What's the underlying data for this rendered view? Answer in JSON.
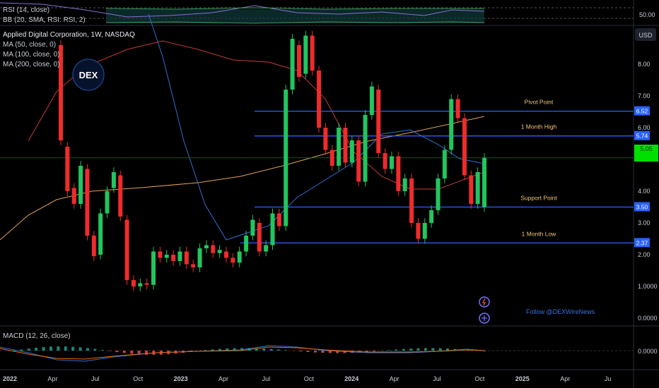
{
  "legends": {
    "rsi": "RSI (14, close)",
    "bb": "BB (20, SMA, RSI: RSI, 2)",
    "title": "Applied Digital Corporation, 1W, NASDAQ",
    "ma50": "MA (50, close, 0)",
    "ma100": "MA (100, close, 0)",
    "ma200": "MA (200, close, 0)",
    "macd": "MACD (12, 26, close)"
  },
  "currency": "USD",
  "logo_text": "DEX",
  "follow_text": "Follow @DEXWireNews",
  "rsi_axis_label": "50.00",
  "price_axis": {
    "ticks": [
      "8.00",
      "7.00",
      "6.00",
      "5.00",
      "4.00",
      "3.00",
      "2.00",
      "1.0000",
      "0.0000"
    ],
    "tick_values": [
      8,
      7,
      6,
      5,
      4,
      3,
      2,
      1,
      0
    ]
  },
  "macd_axis_label": "0.0000",
  "time_axis": [
    "2022",
    "Apr",
    "Jul",
    "Oct",
    "2023",
    "Apr",
    "Jul",
    "Oct",
    "2024",
    "Apr",
    "Jul",
    "Oct",
    "2025",
    "Apr",
    "Ju"
  ],
  "levels": [
    {
      "name": "Pivot Point",
      "value": 6.52,
      "label": "6.52"
    },
    {
      "name": "1 Month High",
      "value": 5.74,
      "label": "5.74"
    },
    {
      "name": "Support Point",
      "value": 3.5,
      "label": "3.50"
    },
    {
      "name": "1 Month Low",
      "value": 2.37,
      "label": "2.37"
    }
  ],
  "current_price_label": "5.05",
  "colors": {
    "up": "#22c55e",
    "down": "#ef2b2b",
    "level": "#2962ff",
    "level_label": "#f0c674",
    "ma50": "#2f6fd6",
    "ma100": "#c23b3b",
    "ma200": "#e0a35a",
    "current": "#00e000"
  },
  "chart_data": {
    "type": "candlestick",
    "title": "Applied Digital Corporation, 1W, NASDAQ",
    "ylim": [
      0,
      9
    ],
    "candles": [
      {
        "t": "2022-01",
        "o": 8.6,
        "c": 5.6
      },
      {
        "t": "2022-02",
        "o": 5.4,
        "c": 4.0
      },
      {
        "t": "2022-02b",
        "o": 4.1,
        "c": 3.6
      },
      {
        "t": "2022-03",
        "o": 3.6,
        "c": 4.8
      },
      {
        "t": "2022-03b",
        "o": 4.7,
        "c": 2.6
      },
      {
        "t": "2022-04",
        "o": 2.6,
        "c": 1.95
      },
      {
        "t": "2022-04b",
        "o": 2.0,
        "c": 3.3
      },
      {
        "t": "2022-05",
        "o": 3.3,
        "c": 4.0
      },
      {
        "t": "2022-05b",
        "o": 4.1,
        "c": 4.6
      },
      {
        "t": "2022-06",
        "o": 4.5,
        "c": 3.2
      },
      {
        "t": "2022-06b",
        "o": 3.1,
        "c": 1.2
      },
      {
        "t": "2022-07",
        "o": 1.2,
        "c": 1.0
      },
      {
        "t": "2022-07b",
        "o": 1.0,
        "c": 1.1
      },
      {
        "t": "2022-08",
        "o": 1.1,
        "c": 1.05
      },
      {
        "t": "2022-08b",
        "o": 1.05,
        "c": 2.1
      },
      {
        "t": "2022-09",
        "o": 2.1,
        "c": 1.9
      },
      {
        "t": "2022-09b",
        "o": 1.9,
        "c": 2.0
      },
      {
        "t": "2022-10",
        "o": 2.0,
        "c": 1.8
      },
      {
        "t": "2022-10b",
        "o": 1.8,
        "c": 2.1
      },
      {
        "t": "2022-11",
        "o": 2.1,
        "c": 1.7
      },
      {
        "t": "2022-11b",
        "o": 1.7,
        "c": 1.6
      },
      {
        "t": "2022-12",
        "o": 1.6,
        "c": 2.2
      },
      {
        "t": "2022-12b",
        "o": 2.2,
        "c": 2.3
      },
      {
        "t": "2023-01",
        "o": 2.3,
        "c": 2.05
      },
      {
        "t": "2023-01b",
        "o": 2.05,
        "c": 2.15
      },
      {
        "t": "2023-02",
        "o": 2.1,
        "c": 1.9
      },
      {
        "t": "2023-02b",
        "o": 1.9,
        "c": 1.75
      },
      {
        "t": "2023-03",
        "o": 1.75,
        "c": 2.1
      },
      {
        "t": "2023-03b",
        "o": 2.1,
        "c": 2.6
      },
      {
        "t": "2023-04",
        "o": 2.6,
        "c": 3.1
      },
      {
        "t": "2023-04b",
        "o": 3.0,
        "c": 2.1
      },
      {
        "t": "2023-05",
        "o": 2.1,
        "c": 2.3
      },
      {
        "t": "2023-05b",
        "o": 2.3,
        "c": 3.3
      },
      {
        "t": "2023-06",
        "o": 3.3,
        "c": 2.9
      },
      {
        "t": "2023-06b",
        "o": 2.9,
        "c": 7.2
      },
      {
        "t": "2023-07",
        "o": 7.2,
        "c": 8.8
      },
      {
        "t": "2023-07b",
        "o": 8.6,
        "c": 7.6
      },
      {
        "t": "2023-08",
        "o": 7.7,
        "c": 8.9
      },
      {
        "t": "2023-08b",
        "o": 8.9,
        "c": 7.8
      },
      {
        "t": "2023-09",
        "o": 7.8,
        "c": 6.0
      },
      {
        "t": "2023-09b",
        "o": 6.0,
        "c": 5.3
      },
      {
        "t": "2023-10",
        "o": 5.3,
        "c": 4.8
      },
      {
        "t": "2023-10b",
        "o": 4.8,
        "c": 6.0
      },
      {
        "t": "2023-11",
        "o": 6.0,
        "c": 4.9
      },
      {
        "t": "2023-11b",
        "o": 4.9,
        "c": 5.6
      },
      {
        "t": "2023-12",
        "o": 5.6,
        "c": 4.3
      },
      {
        "t": "2023-12b",
        "o": 4.3,
        "c": 6.4
      },
      {
        "t": "2024-01",
        "o": 6.4,
        "c": 7.3
      },
      {
        "t": "2024-01b",
        "o": 7.2,
        "c": 5.2
      },
      {
        "t": "2024-02",
        "o": 5.2,
        "c": 4.7
      },
      {
        "t": "2024-02b",
        "o": 4.7,
        "c": 5.1
      },
      {
        "t": "2024-03",
        "o": 5.1,
        "c": 4.0
      },
      {
        "t": "2024-03b",
        "o": 4.0,
        "c": 4.4
      },
      {
        "t": "2024-04",
        "o": 4.4,
        "c": 3.0
      },
      {
        "t": "2024-04b",
        "o": 3.0,
        "c": 2.5
      },
      {
        "t": "2024-05",
        "o": 2.5,
        "c": 3.0
      },
      {
        "t": "2024-05b",
        "o": 3.0,
        "c": 3.4
      },
      {
        "t": "2024-06",
        "o": 3.4,
        "c": 4.4
      },
      {
        "t": "2024-06b",
        "o": 4.4,
        "c": 5.3
      },
      {
        "t": "2024-07",
        "o": 5.3,
        "c": 6.9
      },
      {
        "t": "2024-07b",
        "o": 6.9,
        "c": 6.3
      },
      {
        "t": "2024-08",
        "o": 6.3,
        "c": 4.5
      },
      {
        "t": "2024-08b",
        "o": 4.5,
        "c": 3.6
      },
      {
        "t": "2024-08c",
        "o": 3.6,
        "c": 4.6
      },
      {
        "t": "2024-09",
        "o": 3.5,
        "c": 5.05
      }
    ]
  }
}
